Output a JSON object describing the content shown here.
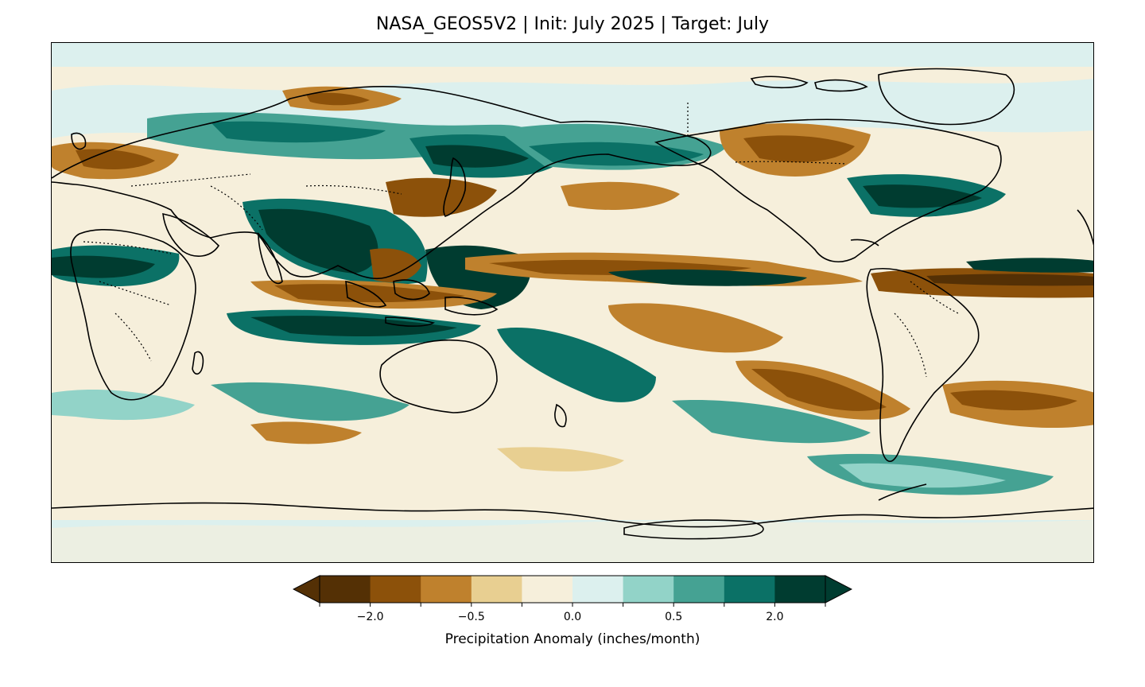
{
  "title": "NASA_GEOS5V2 | Init: July 2025 | Target: July",
  "colorbar": {
    "label": "Precipitation Anomaly (inches/month)",
    "extend": "both",
    "colors": [
      "#543005",
      "#8c510a",
      "#bf812d",
      "#e8cf91",
      "#f6efdb",
      "#dcf0ee",
      "#92d3c8",
      "#45a293",
      "#0b7166",
      "#003c30"
    ],
    "ticks": [
      {
        "value": -2.0,
        "label": "−2.0"
      },
      {
        "value": -0.5,
        "label": "−0.5"
      },
      {
        "value": 0.0,
        "label": "0.0"
      },
      {
        "value": 0.5,
        "label": "0.5"
      },
      {
        "value": 2.0,
        "label": "2.0"
      }
    ]
  },
  "map": {
    "projection": "PlateCarree",
    "central_longitude": 180,
    "features": [
      "coastlines",
      "country-borders"
    ]
  }
}
